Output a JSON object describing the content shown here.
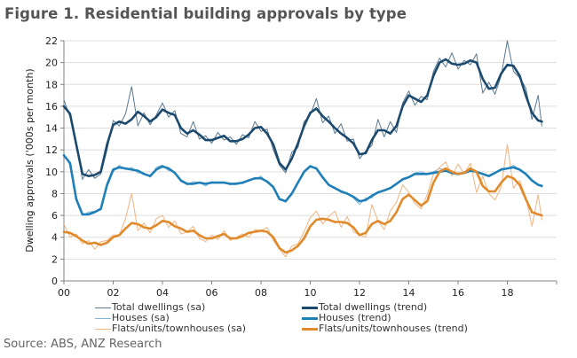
{
  "title": "Figure 1. Residential building approvals by type",
  "source": "Source: ABS, ANZ Research",
  "chart_data": {
    "type": "line",
    "title": "Figure 1. Residential building approvals by type",
    "xlabel": "",
    "ylabel": "Dwelling approvals ('000s per month)",
    "ylim": [
      0,
      22
    ],
    "xlim": [
      2000,
      2020
    ],
    "yticks": [
      0,
      2,
      4,
      6,
      8,
      10,
      12,
      14,
      16,
      18,
      20,
      22
    ],
    "xticks": [
      {
        "value": 2000,
        "label": "00"
      },
      {
        "value": 2002,
        "label": "02"
      },
      {
        "value": 2004,
        "label": "04"
      },
      {
        "value": 2006,
        "label": "06"
      },
      {
        "value": 2008,
        "label": "08"
      },
      {
        "value": 2010,
        "label": "10"
      },
      {
        "value": 2012,
        "label": "12"
      },
      {
        "value": 2014,
        "label": "14"
      },
      {
        "value": 2016,
        "label": "16"
      },
      {
        "value": 2018,
        "label": "18"
      }
    ],
    "grid": true,
    "legend_position": "bottom",
    "x": [
      2000.0,
      2000.25,
      2000.5,
      2000.75,
      2001.0,
      2001.25,
      2001.5,
      2001.75,
      2002.0,
      2002.25,
      2002.5,
      2002.75,
      2003.0,
      2003.25,
      2003.5,
      2003.75,
      2004.0,
      2004.25,
      2004.5,
      2004.75,
      2005.0,
      2005.25,
      2005.5,
      2005.75,
      2006.0,
      2006.25,
      2006.5,
      2006.75,
      2007.0,
      2007.25,
      2007.5,
      2007.75,
      2008.0,
      2008.25,
      2008.5,
      2008.75,
      2009.0,
      2009.25,
      2009.5,
      2009.75,
      2010.0,
      2010.25,
      2010.5,
      2010.75,
      2011.0,
      2011.25,
      2011.5,
      2011.75,
      2012.0,
      2012.25,
      2012.5,
      2012.75,
      2013.0,
      2013.25,
      2013.5,
      2013.75,
      2014.0,
      2014.25,
      2014.5,
      2014.75,
      2015.0,
      2015.25,
      2015.5,
      2015.75,
      2016.0,
      2016.25,
      2016.5,
      2016.75,
      2017.0,
      2017.25,
      2017.5,
      2017.75,
      2018.0,
      2018.25,
      2018.5,
      2018.75,
      2019.0,
      2019.25,
      2019.4
    ],
    "series": [
      {
        "name": "Total dwellings (sa)",
        "color": "#5a7891",
        "width": 1,
        "values": [
          16.6,
          15.0,
          12.8,
          9.3,
          10.2,
          9.4,
          9.8,
          12.0,
          14.7,
          14.2,
          15.3,
          17.8,
          14.2,
          15.4,
          14.3,
          15.2,
          16.3,
          15.0,
          15.6,
          13.5,
          13.2,
          14.6,
          13.0,
          13.3,
          12.6,
          13.6,
          12.9,
          13.2,
          12.5,
          13.4,
          13.1,
          14.6,
          13.7,
          13.9,
          12.0,
          10.6,
          9.9,
          11.8,
          12.2,
          14.6,
          15.2,
          16.7,
          14.5,
          15.1,
          13.5,
          14.4,
          12.8,
          13.0,
          11.2,
          11.9,
          12.4,
          14.8,
          13.2,
          14.6,
          13.6,
          16.3,
          17.4,
          16.1,
          16.9,
          16.6,
          19.2,
          20.4,
          19.6,
          20.9,
          19.4,
          20.2,
          19.8,
          20.8,
          17.2,
          18.2,
          17.1,
          18.8,
          22.0,
          19.2,
          18.6,
          17.7,
          14.8,
          17.0,
          14.2
        ]
      },
      {
        "name": "Total dwellings (trend)",
        "color": "#1c4a6e",
        "width": 2.6,
        "values": [
          16.0,
          15.3,
          12.5,
          9.8,
          9.6,
          9.7,
          10.0,
          12.5,
          14.3,
          14.6,
          14.4,
          14.8,
          15.5,
          15.1,
          14.6,
          15.0,
          15.7,
          15.4,
          15.2,
          14.0,
          13.5,
          13.8,
          13.4,
          12.9,
          12.9,
          13.1,
          13.3,
          12.8,
          12.8,
          13.0,
          13.4,
          14.0,
          14.1,
          13.5,
          12.5,
          10.8,
          10.2,
          11.2,
          12.6,
          14.2,
          15.4,
          15.8,
          15.1,
          14.6,
          14.0,
          13.5,
          13.1,
          12.6,
          11.6,
          11.7,
          12.9,
          13.8,
          13.8,
          13.5,
          14.2,
          16.0,
          17.0,
          16.7,
          16.4,
          17.0,
          18.8,
          20.0,
          20.3,
          19.9,
          19.8,
          19.9,
          20.2,
          20.0,
          18.5,
          17.6,
          17.7,
          19.0,
          19.8,
          19.7,
          18.8,
          17.0,
          15.4,
          14.7,
          14.6
        ]
      },
      {
        "name": "Houses (sa)",
        "color": "#7fb3d5",
        "width": 1,
        "values": [
          11.6,
          10.6,
          7.7,
          6.0,
          6.3,
          6.4,
          6.5,
          8.6,
          10.0,
          10.6,
          10.2,
          10.4,
          9.9,
          9.9,
          9.5,
          10.4,
          10.6,
          10.1,
          10.0,
          9.1,
          8.8,
          9.1,
          9.0,
          8.7,
          9.1,
          9.0,
          9.0,
          8.8,
          9.0,
          8.9,
          9.3,
          9.3,
          9.6,
          9.0,
          8.6,
          7.5,
          7.2,
          8.1,
          9.0,
          10.1,
          10.6,
          10.2,
          9.6,
          8.7,
          8.6,
          8.1,
          8.1,
          7.6,
          7.0,
          7.6,
          7.6,
          8.2,
          8.2,
          8.6,
          8.8,
          9.4,
          9.5,
          9.9,
          10.0,
          9.8,
          10.0,
          10.3,
          10.1,
          9.9,
          9.7,
          10.0,
          10.2,
          9.9,
          9.8,
          9.6,
          9.9,
          10.3,
          10.3,
          10.6,
          10.2,
          9.8,
          9.2,
          8.8,
          8.6
        ]
      },
      {
        "name": "Houses (trend)",
        "color": "#1f7fb8",
        "width": 2.6,
        "values": [
          11.5,
          10.8,
          7.5,
          6.1,
          6.1,
          6.3,
          6.6,
          8.8,
          10.2,
          10.4,
          10.3,
          10.2,
          10.1,
          9.8,
          9.6,
          10.2,
          10.5,
          10.3,
          9.9,
          9.2,
          8.9,
          8.9,
          9.0,
          8.9,
          9.0,
          9.0,
          9.0,
          8.9,
          8.9,
          9.0,
          9.2,
          9.4,
          9.4,
          9.1,
          8.6,
          7.5,
          7.3,
          8.0,
          9.0,
          10.0,
          10.5,
          10.3,
          9.5,
          8.8,
          8.5,
          8.2,
          8.0,
          7.7,
          7.3,
          7.4,
          7.8,
          8.1,
          8.3,
          8.5,
          8.9,
          9.3,
          9.5,
          9.8,
          9.8,
          9.8,
          9.9,
          10.0,
          10.1,
          9.9,
          9.8,
          9.9,
          10.1,
          10.0,
          9.8,
          9.6,
          9.9,
          10.2,
          10.3,
          10.4,
          10.2,
          9.8,
          9.2,
          8.8,
          8.7
        ]
      },
      {
        "name": "Flats/units/townhouses (sa)",
        "color": "#f0b582",
        "width": 1,
        "values": [
          5.2,
          4.0,
          4.3,
          3.4,
          3.7,
          2.9,
          3.6,
          3.7,
          4.2,
          4.2,
          5.7,
          8.0,
          4.6,
          5.3,
          4.4,
          5.7,
          6.0,
          4.9,
          5.5,
          4.3,
          4.5,
          5.0,
          3.9,
          3.6,
          4.2,
          3.8,
          4.6,
          3.7,
          4.0,
          4.3,
          4.0,
          4.7,
          4.6,
          4.9,
          3.7,
          2.9,
          2.2,
          3.2,
          3.4,
          4.5,
          5.8,
          6.4,
          5.2,
          5.9,
          6.4,
          4.9,
          5.9,
          4.5,
          4.2,
          4.0,
          7.0,
          5.5,
          4.7,
          6.4,
          7.2,
          8.8,
          8.1,
          7.1,
          6.6,
          7.9,
          9.8,
          10.4,
          10.9,
          9.6,
          10.7,
          9.8,
          10.8,
          8.1,
          9.6,
          8.0,
          7.4,
          8.6,
          12.5,
          8.5,
          9.2,
          7.7,
          5.0,
          7.9,
          5.6
        ]
      },
      {
        "name": "Flats/units/townhouses (trend)",
        "color": "#e08a2b",
        "width": 2.6,
        "values": [
          4.5,
          4.4,
          4.1,
          3.7,
          3.4,
          3.5,
          3.3,
          3.5,
          4.0,
          4.2,
          4.8,
          5.3,
          5.2,
          4.9,
          4.8,
          5.1,
          5.5,
          5.4,
          5.0,
          4.8,
          4.5,
          4.6,
          4.2,
          3.9,
          3.9,
          4.1,
          4.3,
          3.9,
          3.9,
          4.1,
          4.4,
          4.5,
          4.6,
          4.5,
          4.0,
          3.0,
          2.6,
          2.8,
          3.2,
          3.9,
          5.0,
          5.6,
          5.7,
          5.6,
          5.4,
          5.4,
          5.3,
          4.9,
          4.2,
          4.4,
          5.2,
          5.5,
          5.2,
          5.5,
          6.3,
          7.5,
          7.9,
          7.4,
          6.9,
          7.3,
          9.0,
          10.0,
          10.3,
          10.0,
          9.8,
          9.9,
          10.3,
          10.0,
          8.7,
          8.2,
          8.2,
          9.0,
          9.6,
          9.4,
          8.8,
          7.5,
          6.3,
          6.1,
          6.0
        ]
      }
    ],
    "legend": [
      {
        "label": "Total dwellings (sa)",
        "series": 0
      },
      {
        "label": "Total dwellings (trend)",
        "series": 1
      },
      {
        "label": "Houses (sa)",
        "series": 2
      },
      {
        "label": "Houses (trend)",
        "series": 3
      },
      {
        "label": "Flats/units/townhouses (sa)",
        "series": 4
      },
      {
        "label": "Flats/units/townhouses (trend)",
        "series": 5
      }
    ]
  }
}
